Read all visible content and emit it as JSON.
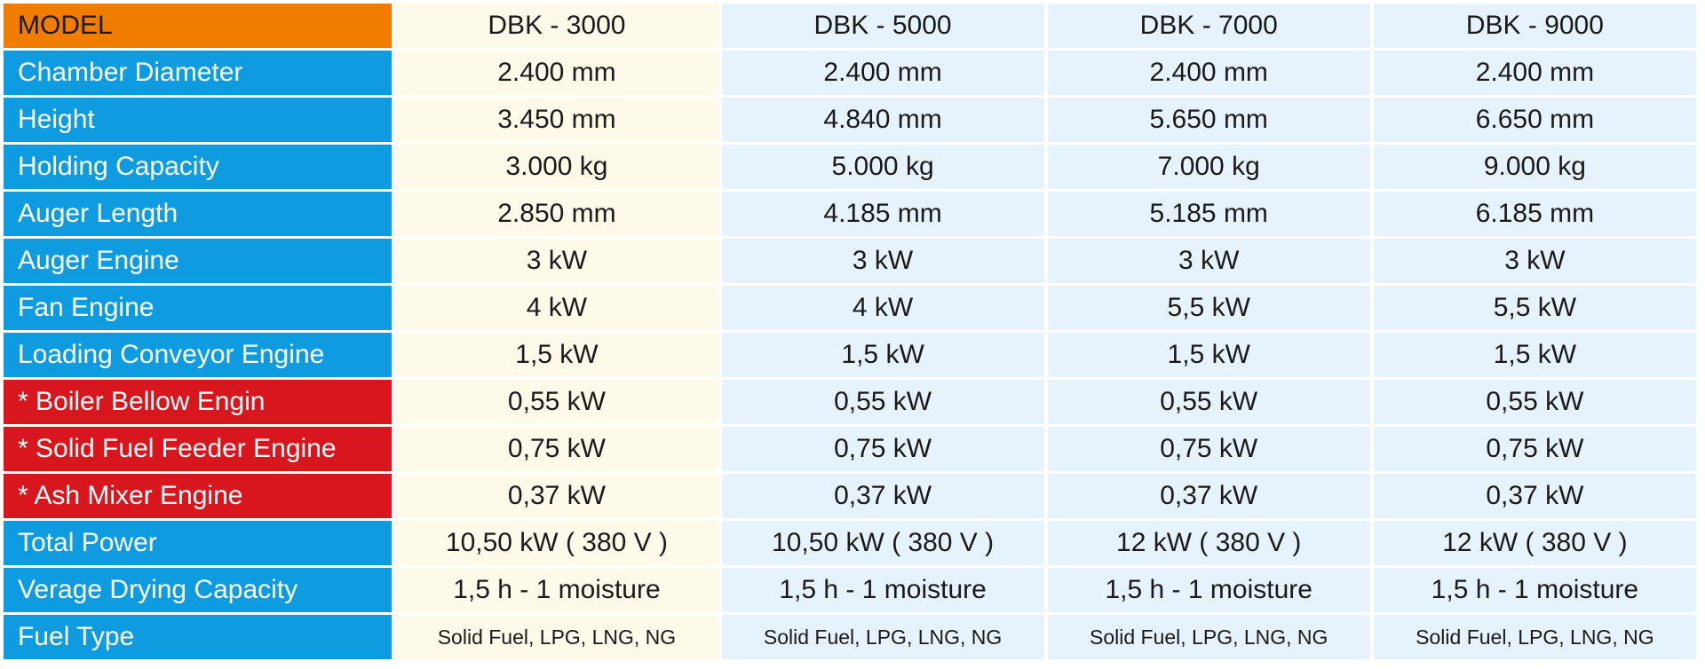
{
  "header": {
    "label": "MODEL",
    "models": [
      "DBK - 3000",
      "DBK - 5000",
      "DBK - 7000",
      "DBK - 9000"
    ]
  },
  "colors": {
    "header_label_bg": "#f07d00",
    "row_label_bg": "#0f9be0",
    "optional_row_label_bg": "#d8161e",
    "col1_bg": "#fefaea",
    "col_other_bg": "#e6f3fc"
  },
  "rows": [
    {
      "label": "Chamber Diameter",
      "style": "blue",
      "values": [
        "2.400 mm",
        "2.400 mm",
        "2.400 mm",
        "2.400 mm"
      ]
    },
    {
      "label": "Height",
      "style": "blue",
      "values": [
        "3.450 mm",
        "4.840 mm",
        "5.650 mm",
        "6.650 mm"
      ]
    },
    {
      "label": "Holding Capacity",
      "style": "blue",
      "values": [
        "3.000 kg",
        "5.000 kg",
        "7.000 kg",
        "9.000 kg"
      ]
    },
    {
      "label": "Auger Length",
      "style": "blue",
      "values": [
        "2.850 mm",
        "4.185 mm",
        "5.185 mm",
        "6.185 mm"
      ]
    },
    {
      "label": "Auger Engine",
      "style": "blue",
      "values": [
        "3 kW",
        "3 kW",
        "3 kW",
        "3 kW"
      ]
    },
    {
      "label": "Fan Engine",
      "style": "blue",
      "values": [
        "4 kW",
        "4 kW",
        "5,5 kW",
        "5,5 kW"
      ]
    },
    {
      "label": "Loading Conveyor Engine",
      "style": "blue",
      "values": [
        "1,5 kW",
        "1,5 kW",
        "1,5 kW",
        "1,5 kW"
      ]
    },
    {
      "label": "* Boiler Bellow Engin",
      "style": "red",
      "values": [
        "0,55 kW",
        "0,55 kW",
        "0,55 kW",
        "0,55 kW"
      ]
    },
    {
      "label": "* Solid Fuel Feeder Engine",
      "style": "red",
      "values": [
        "0,75 kW",
        "0,75 kW",
        "0,75 kW",
        "0,75 kW"
      ]
    },
    {
      "label": "* Ash Mixer Engine",
      "style": "red",
      "values": [
        "0,37 kW",
        "0,37 kW",
        "0,37 kW",
        "0,37 kW"
      ]
    },
    {
      "label": "Total Power",
      "style": "blue",
      "values": [
        "10,50 kW ( 380 V )",
        "10,50 kW ( 380 V )",
        "12 kW ( 380 V )",
        "12 kW ( 380 V )"
      ]
    },
    {
      "label": "Verage Drying Capacity",
      "style": "blue",
      "values": [
        "1,5 h - 1 moisture",
        "1,5 h - 1 moisture",
        "1,5 h - 1 moisture",
        "1,5 h - 1 moisture"
      ]
    },
    {
      "label": "Fuel Type",
      "style": "blue",
      "small": true,
      "values": [
        "Solid Fuel, LPG, LNG, NG",
        "Solid Fuel, LPG, LNG, NG",
        "Solid Fuel, LPG, LNG, NG",
        "Solid Fuel, LPG, LNG, NG"
      ]
    }
  ]
}
